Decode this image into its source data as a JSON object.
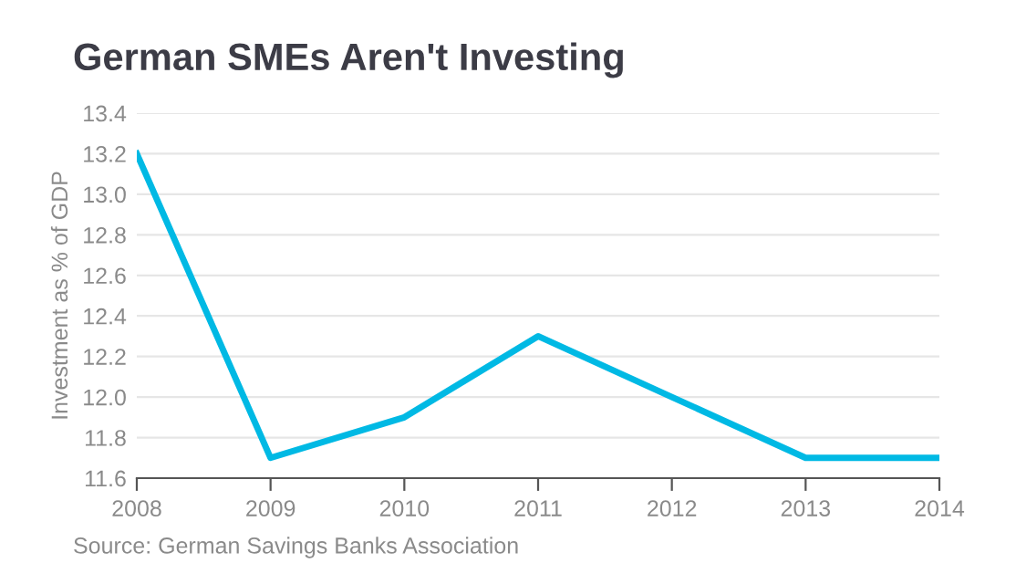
{
  "chart_data": {
    "type": "line",
    "title": "German SMEs Aren't Investing",
    "ylabel": "Investment as % of GDP",
    "x": [
      2008,
      2009,
      2010,
      2011,
      2012,
      2013,
      2014
    ],
    "series": [
      {
        "color": "#00b9e4",
        "values": [
          13.2,
          11.7,
          11.9,
          12.3,
          12.0,
          11.7,
          11.7
        ]
      }
    ],
    "xlim": [
      2008,
      2014
    ],
    "xticks": [
      2008,
      2009,
      2010,
      2011,
      2012,
      2013,
      2014
    ],
    "ylim": [
      11.6,
      13.4
    ],
    "yticks": [
      {
        "value": 11.6,
        "label": "11.6"
      },
      {
        "value": 11.8,
        "label": "11.8"
      },
      {
        "value": 12.0,
        "label": "12.0"
      },
      {
        "value": 12.2,
        "label": "12.2"
      },
      {
        "value": 12.4,
        "label": "12.4"
      },
      {
        "value": 12.6,
        "label": "12.6"
      },
      {
        "value": 12.8,
        "label": "12.8"
      },
      {
        "value": 13.0,
        "label": "13.0"
      },
      {
        "value": 13.2,
        "label": "13.2"
      },
      {
        "value": 13.4,
        "label": "13.4"
      }
    ],
    "grid": "y",
    "legend": false,
    "annotations": [
      "Source: German Savings Banks Association"
    ]
  }
}
